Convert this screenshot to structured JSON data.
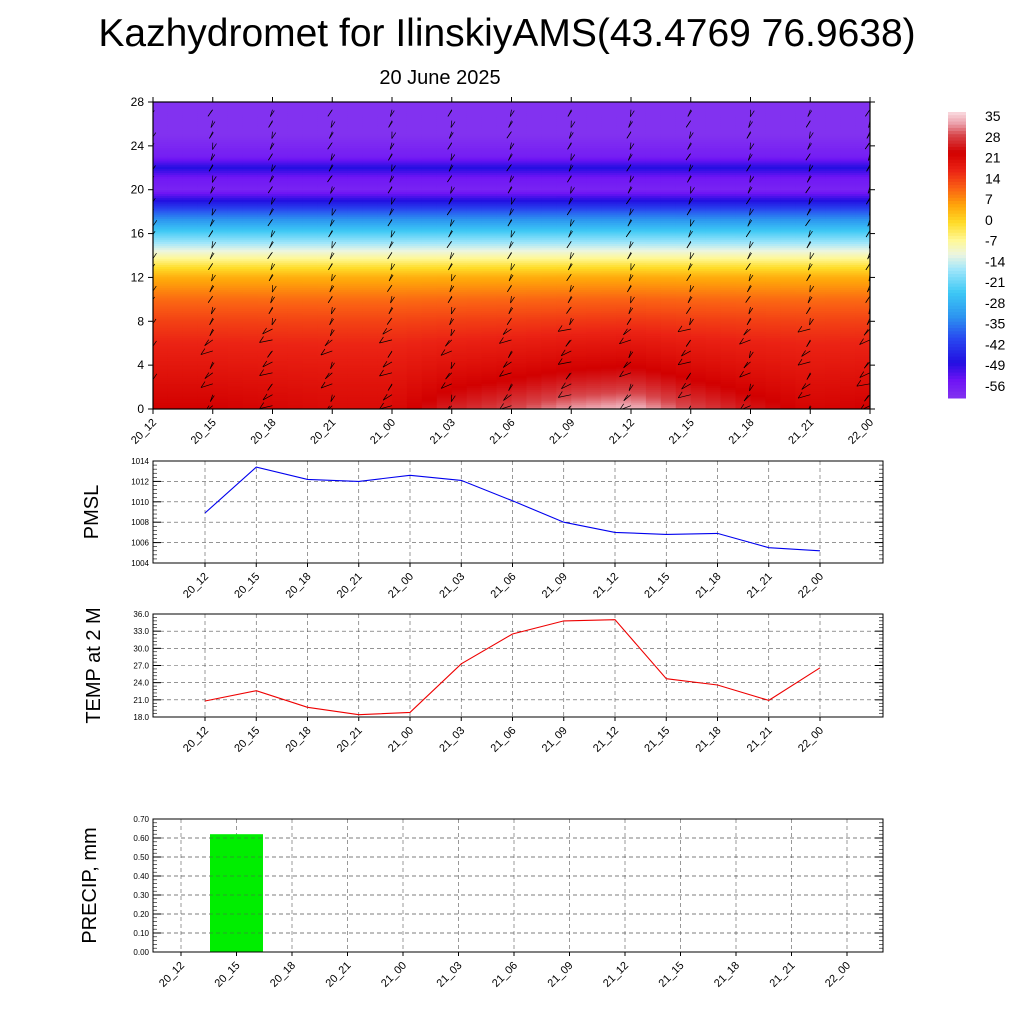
{
  "title": "Kazhydromet for IlinskiyAMS(43.4769 76.9638)",
  "subtitle": "20 June 2025",
  "time_labels": [
    "20_12",
    "20_15",
    "20_18",
    "20_21",
    "21_00",
    "21_03",
    "21_06",
    "21_09",
    "21_12",
    "21_15",
    "21_18",
    "21_21",
    "22_00"
  ],
  "chart_data": [
    {
      "type": "heatmap",
      "name": "temperature-height-section",
      "x": [
        "20_12",
        "20_15",
        "20_18",
        "20_21",
        "21_00",
        "21_03",
        "21_06",
        "21_09",
        "21_12",
        "21_15",
        "21_18",
        "21_21",
        "22_00"
      ],
      "ylim": [
        0,
        28
      ],
      "yticks": [
        0,
        4,
        8,
        12,
        16,
        20,
        24,
        28
      ],
      "colorbar": {
        "labels": [
          "35",
          "28",
          "21",
          "14",
          "7",
          "0",
          "-7",
          "-14",
          "-21",
          "-28",
          "-35",
          "-42",
          "-49",
          "-56"
        ],
        "range": [
          -60,
          38
        ]
      },
      "profile": [
        [
          0,
          24
        ],
        [
          2,
          22
        ],
        [
          4,
          20
        ],
        [
          6,
          18
        ],
        [
          8,
          15
        ],
        [
          10,
          11
        ],
        [
          12,
          5
        ],
        [
          13,
          -1
        ],
        [
          14,
          -8
        ],
        [
          16,
          -22
        ],
        [
          18,
          -38
        ],
        [
          19,
          -48
        ],
        [
          20,
          -57
        ],
        [
          21,
          -55
        ],
        [
          22,
          -48
        ],
        [
          23,
          -56
        ],
        [
          25,
          -60
        ],
        [
          28,
          -60
        ]
      ],
      "surface_anomaly": [
        0,
        0,
        -1,
        -2,
        -2,
        3,
        6,
        10,
        12,
        6,
        2,
        -1,
        0
      ],
      "wind_barbs": true
    },
    {
      "type": "line",
      "name": "pmsl",
      "ylabel": "PMSL",
      "x": [
        "20_12",
        "20_15",
        "20_18",
        "20_21",
        "21_00",
        "21_03",
        "21_06",
        "21_09",
        "21_12",
        "21_15",
        "21_18",
        "21_21",
        "22_00"
      ],
      "values": [
        1008.9,
        1013.4,
        1012.2,
        1012.0,
        1012.6,
        1012.1,
        1010.1,
        1008.0,
        1007.0,
        1006.8,
        1006.9,
        1005.5,
        1005.2
      ],
      "ylim": [
        1004,
        1014
      ],
      "yticks": [
        1004,
        1006,
        1008,
        1010,
        1012,
        1014
      ],
      "color": "#0000ee"
    },
    {
      "type": "line",
      "name": "temp-2m",
      "ylabel": "TEMP at 2 M",
      "x": [
        "20_12",
        "20_15",
        "20_18",
        "20_21",
        "21_00",
        "21_03",
        "21_06",
        "21_09",
        "21_12",
        "21_15",
        "21_18",
        "21_21",
        "22_00"
      ],
      "values": [
        20.8,
        22.6,
        19.7,
        18.4,
        18.8,
        27.3,
        32.5,
        34.8,
        35.0,
        24.7,
        23.6,
        20.9,
        26.6
      ],
      "ylim": [
        18,
        36
      ],
      "yticks": [
        "18.0",
        "21.0",
        "24.0",
        "27.0",
        "30.0",
        "33.0",
        "36.0"
      ],
      "color": "#ee0000"
    },
    {
      "type": "bar",
      "name": "precip",
      "ylabel": "PRECIP, mm",
      "categories": [
        "20_12",
        "20_15",
        "20_18",
        "20_21",
        "21_00",
        "21_03",
        "21_06",
        "21_09",
        "21_12",
        "21_15",
        "21_18",
        "21_21",
        "22_00"
      ],
      "values": [
        0,
        0.62,
        0,
        0,
        0,
        0,
        0,
        0,
        0,
        0,
        0,
        0,
        0
      ],
      "ylim": [
        0,
        0.7
      ],
      "yticks": [
        "0.00",
        "0.10",
        "0.20",
        "0.30",
        "0.40",
        "0.50",
        "0.60",
        "0.70"
      ],
      "color": "#00ee00"
    }
  ]
}
